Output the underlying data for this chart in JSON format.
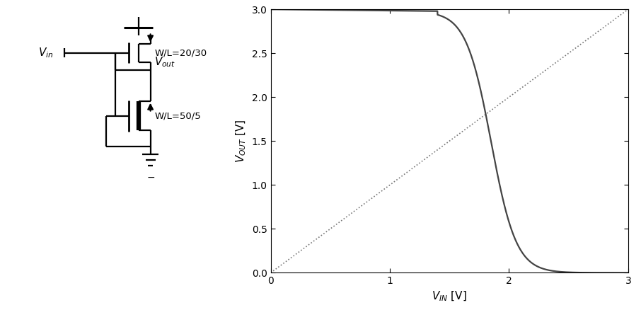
{
  "xlim": [
    0.0,
    3.0
  ],
  "ylim": [
    0.0,
    3.0
  ],
  "xticks": [
    0.0,
    1.0,
    2.0,
    3.0
  ],
  "yticks": [
    0.0,
    0.5,
    1.0,
    1.5,
    2.0,
    2.5,
    3.0
  ],
  "xlabel": "V_{IN} [V]",
  "ylabel": "V_{OUT} [V]",
  "vdd": 3.0,
  "line_color": "#444444",
  "dotted_color": "#777777",
  "background": "#ffffff",
  "circuit_label_wl1": "W/L=20/30",
  "circuit_label_wl2": "W/L=50/5",
  "curve_transition_start": 1.5,
  "curve_transition_mid": 1.85,
  "curve_transition_end": 2.3,
  "curve_k": 9.5
}
